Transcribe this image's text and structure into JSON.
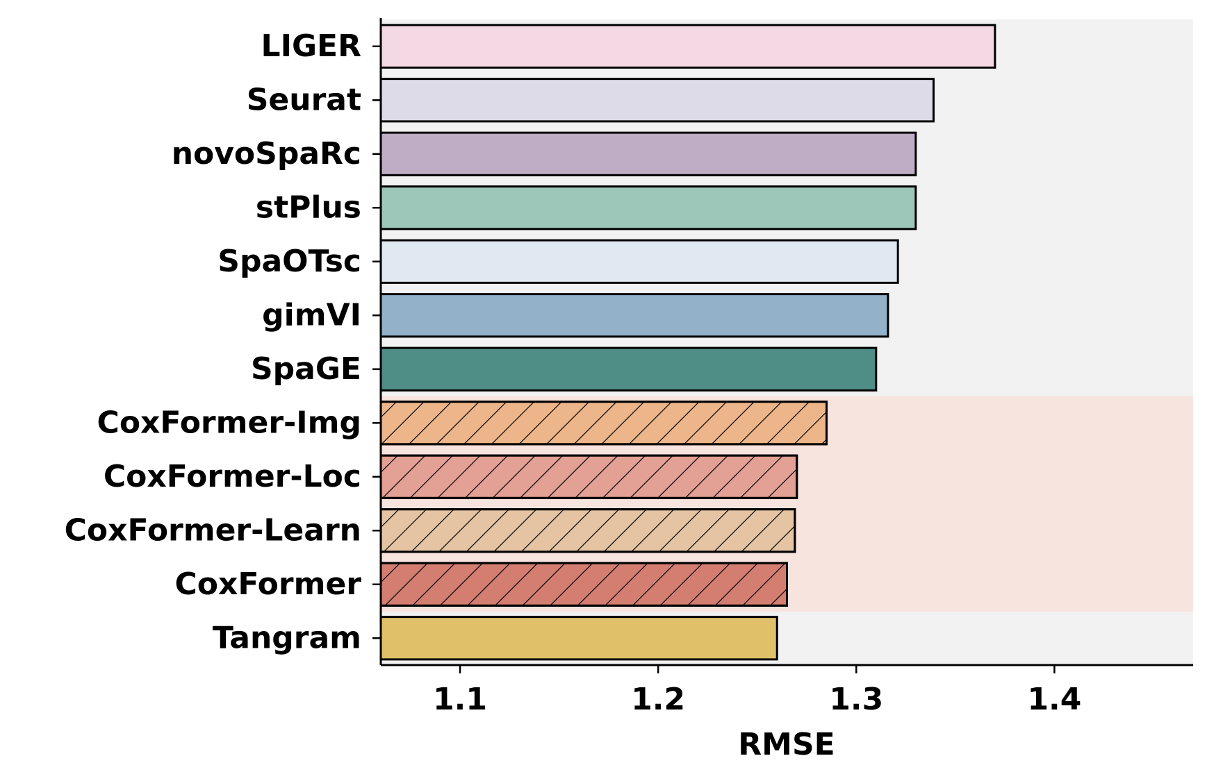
{
  "chart_data": {
    "type": "bar",
    "orientation": "horizontal",
    "x_label": "RMSE",
    "categories": [
      "LIGER",
      "Seurat",
      "novoSpaRc",
      "stPlus",
      "SpaOTsc",
      "gimVI",
      "SpaGE",
      "CoxFormer-Img",
      "CoxFormer-Loc",
      "CoxFormer-Learn",
      "CoxFormer",
      "Tangram"
    ],
    "values": [
      1.37,
      1.339,
      1.33,
      1.33,
      1.321,
      1.316,
      1.31,
      1.285,
      1.27,
      1.269,
      1.265,
      1.26
    ],
    "colors": [
      "#f4d8e4",
      "#dddbe7",
      "#bfadc5",
      "#9dc7b9",
      "#e0e9f1",
      "#93b1c8",
      "#4e8e86",
      "#ecb68a",
      "#e3a094",
      "#e4c4a3",
      "#d47e72",
      "#e1c06a"
    ],
    "hatch": [
      false,
      false,
      false,
      false,
      false,
      false,
      false,
      true,
      true,
      true,
      true,
      false
    ],
    "background_color": "#f1f2f1",
    "highlight_color": "#f8e4de",
    "xlim": [
      1.06,
      1.47
    ],
    "xticks": [
      1.1,
      1.2,
      1.3,
      1.4
    ],
    "grid": false
  }
}
